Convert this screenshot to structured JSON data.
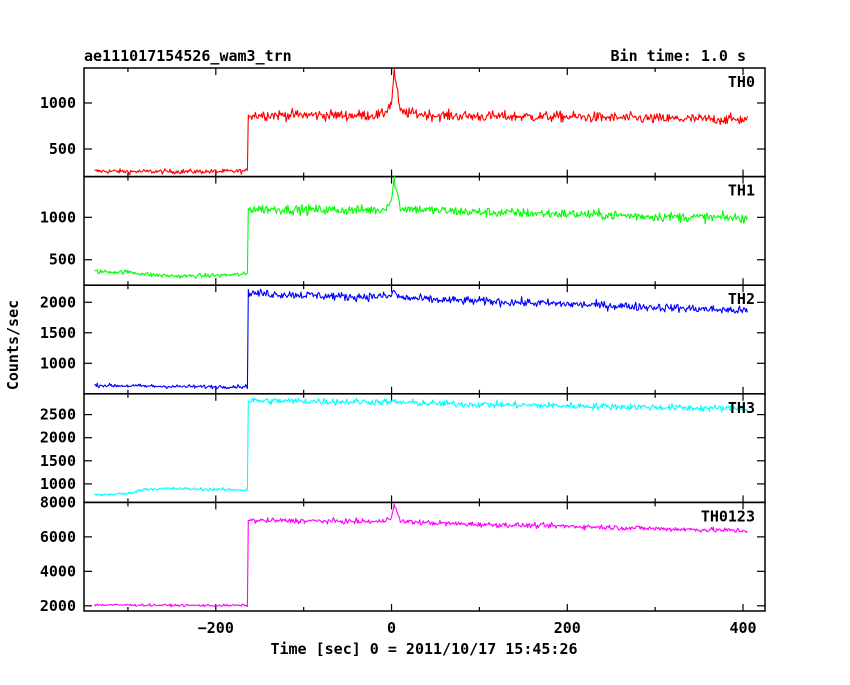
{
  "header": {
    "title": "ae111017154526_wam3_trn",
    "bin_time": "Bin time: 1.0 s"
  },
  "chart_data": {
    "type": "line",
    "title": "ae111017154526_wam3_trn",
    "subtitle": "Bin time: 1.0 s",
    "xlabel": "Time [sec] 0 = 2011/10/17 15:45:26",
    "ylabel": "Counts/sec",
    "xlim": [
      -350,
      425
    ],
    "xticks": [
      -200,
      0,
      200,
      400
    ],
    "x_tick_labels": [
      "−200",
      "0",
      "200",
      "400"
    ],
    "x_data_range": [
      -338,
      405
    ],
    "step_time": -163,
    "grid": false,
    "panels": [
      {
        "name": "TH0",
        "color": "#ff0000",
        "ylim": [
          200,
          1380
        ],
        "yticks": [
          500,
          1000
        ],
        "segments": [
          {
            "x": [
              -338,
              -300,
              -250,
              -200,
              -164
            ],
            "y": [
              260,
              255,
              255,
              255,
              260
            ]
          },
          {
            "x": [
              -163,
              -100,
              -50,
              -10,
              0,
              3,
              10,
              50,
              100,
              200,
              300,
              405
            ],
            "y": [
              870,
              870,
              865,
              870,
              1000,
              1350,
              900,
              865,
              855,
              850,
              830,
              820
            ]
          }
        ],
        "noise": 55
      },
      {
        "name": "TH1",
        "color": "#00ff00",
        "ylim": [
          200,
          1480
        ],
        "yticks": [
          500,
          1000
        ],
        "segments": [
          {
            "x": [
              -338,
              -300,
              -270,
              -240,
              -200,
              -164
            ],
            "y": [
              360,
              355,
              320,
              305,
              315,
              330
            ]
          },
          {
            "x": [
              -163,
              -100,
              -50,
              -10,
              0,
              3,
              10,
              50,
              100,
              200,
              300,
              405
            ],
            "y": [
              1100,
              1090,
              1085,
              1090,
              1200,
              1450,
              1110,
              1080,
              1060,
              1040,
              1010,
              990
            ]
          }
        ],
        "noise": 55
      },
      {
        "name": "TH2",
        "color": "#0000ff",
        "ylim": [
          500,
          2280
        ],
        "yticks": [
          1000,
          1500,
          2000
        ],
        "segments": [
          {
            "x": [
              -338,
              -300,
              -250,
              -200,
              -164
            ],
            "y": [
              640,
              630,
              620,
              615,
              620
            ]
          },
          {
            "x": [
              -163,
              -100,
              -50,
              0,
              3,
              8,
              50,
              100,
              200,
              300,
              405
            ],
            "y": [
              2150,
              2120,
              2090,
              2100,
              2200,
              2080,
              2040,
              2020,
              1970,
              1920,
              1860
            ]
          }
        ],
        "noise": 65
      },
      {
        "name": "TH3",
        "color": "#00ffff",
        "ylim": [
          600,
          2950
        ],
        "yticks": [
          1000,
          1500,
          2000,
          2500
        ],
        "segments": [
          {
            "x": [
              -338,
              -300,
              -280,
              -250,
              -200,
              -164
            ],
            "y": [
              760,
              790,
              890,
              900,
              880,
              870
            ]
          },
          {
            "x": [
              -163,
              -100,
              -50,
              0,
              50,
              100,
              200,
              300,
              405
            ],
            "y": [
              2800,
              2790,
              2780,
              2770,
              2740,
              2720,
              2690,
              2660,
              2620
            ]
          }
        ],
        "noise": 70
      },
      {
        "name": "TH0123",
        "color": "#ff00ff",
        "ylim": [
          1700,
          8000
        ],
        "yticks": [
          2000,
          4000,
          6000,
          8000
        ],
        "segments": [
          {
            "x": [
              -338,
              -300,
              -250,
              -200,
              -164
            ],
            "y": [
              2050,
              2050,
              2030,
              2020,
              2030
            ]
          },
          {
            "x": [
              -163,
              -100,
              -50,
              -10,
              0,
              3,
              10,
              50,
              100,
              200,
              300,
              405
            ],
            "y": [
              6950,
              6930,
              6900,
              6880,
              7200,
              7850,
              6900,
              6800,
              6720,
              6620,
              6480,
              6350
            ]
          }
        ],
        "noise": 140
      }
    ]
  }
}
